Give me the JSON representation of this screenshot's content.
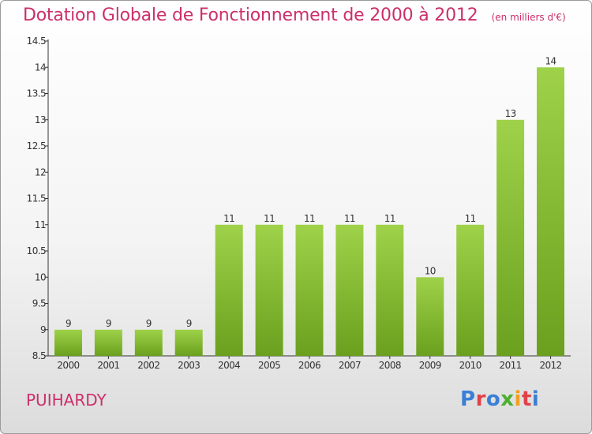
{
  "header": {
    "title": "Dotation Globale de Fonctionnement de 2000 à 2012",
    "subtitle": "(en milliers d'€)"
  },
  "footer": {
    "commune": "PUIHARDY",
    "logo_text": "Proxiti",
    "logo_colors": [
      "#3a7fd5",
      "#e0424a",
      "#3a7fd5",
      "#4caf2e",
      "#f0a020",
      "#e0424a",
      "#3a7fd5"
    ]
  },
  "colors": {
    "accent": "#cc2f6a",
    "bar_top": "#9fd24a",
    "bar_bottom": "#6aa01e"
  },
  "chart_data": {
    "type": "bar",
    "title": "Dotation Globale de Fonctionnement de 2000 à 2012",
    "subtitle": "(en milliers d'€)",
    "xlabel": "",
    "ylabel": "",
    "categories": [
      "2000",
      "2001",
      "2002",
      "2003",
      "2004",
      "2005",
      "2006",
      "2007",
      "2008",
      "2009",
      "2010",
      "2011",
      "2012"
    ],
    "values": [
      9,
      9,
      9,
      9,
      11,
      11,
      11,
      11,
      11,
      10,
      11,
      13,
      14
    ],
    "data_labels": [
      "9",
      "9",
      "9",
      "9",
      "11",
      "11",
      "11",
      "11",
      "11",
      "10",
      "11",
      "13",
      "14"
    ],
    "ylim": [
      8.5,
      14.5
    ],
    "yticks": [
      "8.5",
      "9",
      "9.5",
      "10",
      "10.5",
      "11",
      "11.5",
      "12",
      "12.5",
      "13",
      "13.5",
      "14",
      "14.5"
    ],
    "grid": false,
    "legend": "none"
  }
}
